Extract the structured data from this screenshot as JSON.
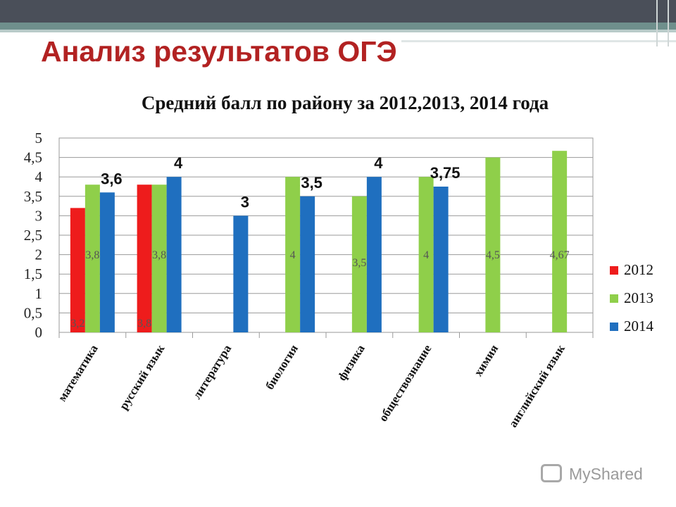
{
  "slide": {
    "title": "Анализ результатов ОГЭ"
  },
  "logo": {
    "text": "MyShared"
  },
  "colors": {
    "accent_title": "#b22222",
    "series_2012": "#ee1c1c",
    "series_2013": "#8fcf4a",
    "series_2014": "#1f6fbf"
  },
  "chart_data": {
    "type": "bar",
    "title": "Средний балл по району за 2012,2013, 2014 года",
    "categories": [
      "математика",
      "русский язык",
      "литература",
      "биология",
      "физика",
      "обществознание",
      "химия",
      "английский язык"
    ],
    "series": [
      {
        "name": "2012",
        "color": "#ee1c1c",
        "values": [
          3.2,
          3.8,
          null,
          null,
          null,
          null,
          null,
          null
        ],
        "labels": [
          "3,2",
          "3,8",
          null,
          null,
          null,
          null,
          null,
          null
        ]
      },
      {
        "name": "2013",
        "color": "#8fcf4a",
        "values": [
          3.8,
          3.8,
          null,
          4,
          3.5,
          4,
          4.5,
          4.67
        ],
        "labels": [
          "3,8",
          "3,8",
          null,
          "4",
          "3,5",
          "4",
          "4,5",
          "4,67"
        ]
      },
      {
        "name": "2014",
        "color": "#1f6fbf",
        "values": [
          3.6,
          4,
          3,
          3.5,
          4,
          3.75,
          null,
          null
        ],
        "labels": [
          "3,6",
          "4",
          "3",
          "3,5",
          "4",
          "3,75",
          null,
          null
        ]
      }
    ],
    "yticks": [
      "0",
      "0,5",
      "1",
      "1,5",
      "2",
      "2,5",
      "3",
      "3,5",
      "4",
      "4,5",
      "5"
    ],
    "ylim": [
      0,
      5
    ],
    "grid": true,
    "legend_position": "right"
  }
}
